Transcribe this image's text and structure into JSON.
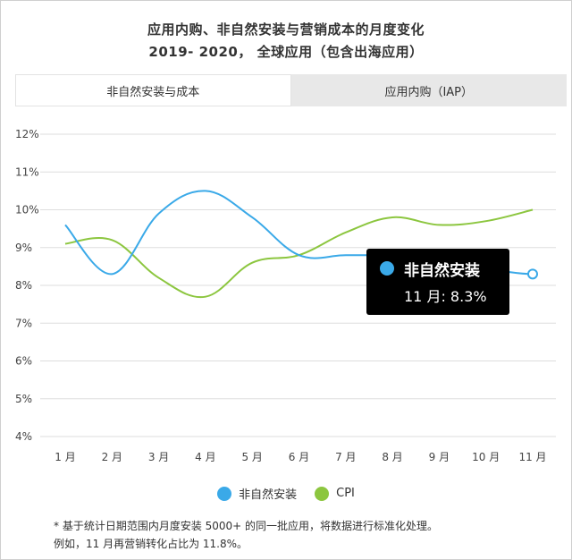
{
  "title_line1": "应用内购、非自然安装与营销成本的月度变化",
  "title_line2": "2019- 2020， 全球应用（包含出海应用）",
  "tabs": [
    {
      "label": "非自然安装与成本",
      "active": true
    },
    {
      "label": "应用内购（IAP）",
      "active": false
    }
  ],
  "chart_data": {
    "type": "line",
    "categories": [
      "1 月",
      "2 月",
      "3 月",
      "4 月",
      "5 月",
      "6 月",
      "7 月",
      "8 月",
      "9 月",
      "10 月",
      "11 月"
    ],
    "y_ticks": [
      "4%",
      "5%",
      "6%",
      "7%",
      "8%",
      "9%",
      "10%",
      "11%",
      "12%"
    ],
    "ylim": [
      4,
      12
    ],
    "grid": true,
    "legend_position": "bottom",
    "series": [
      {
        "name": "非自然安装",
        "color": "#3aa9e8",
        "values": [
          9.6,
          8.3,
          9.9,
          10.5,
          9.8,
          8.8,
          8.8,
          8.8,
          null,
          null,
          8.3
        ]
      },
      {
        "name": "CPI",
        "color": "#8cc63f",
        "values": [
          9.1,
          9.2,
          8.2,
          7.7,
          8.6,
          8.8,
          9.4,
          9.8,
          9.6,
          9.7,
          10.0
        ]
      }
    ]
  },
  "tooltip": {
    "name": "非自然安装",
    "value": "11 月: 8.3%",
    "color": "#3aa9e8"
  },
  "footnote_line1": "* 基于统计日期范围内月度安装 5000+ 的同一批应用，将数据进行标准化处理。",
  "footnote_line2": "例如，11 月再营销转化占比为 11.8%。"
}
